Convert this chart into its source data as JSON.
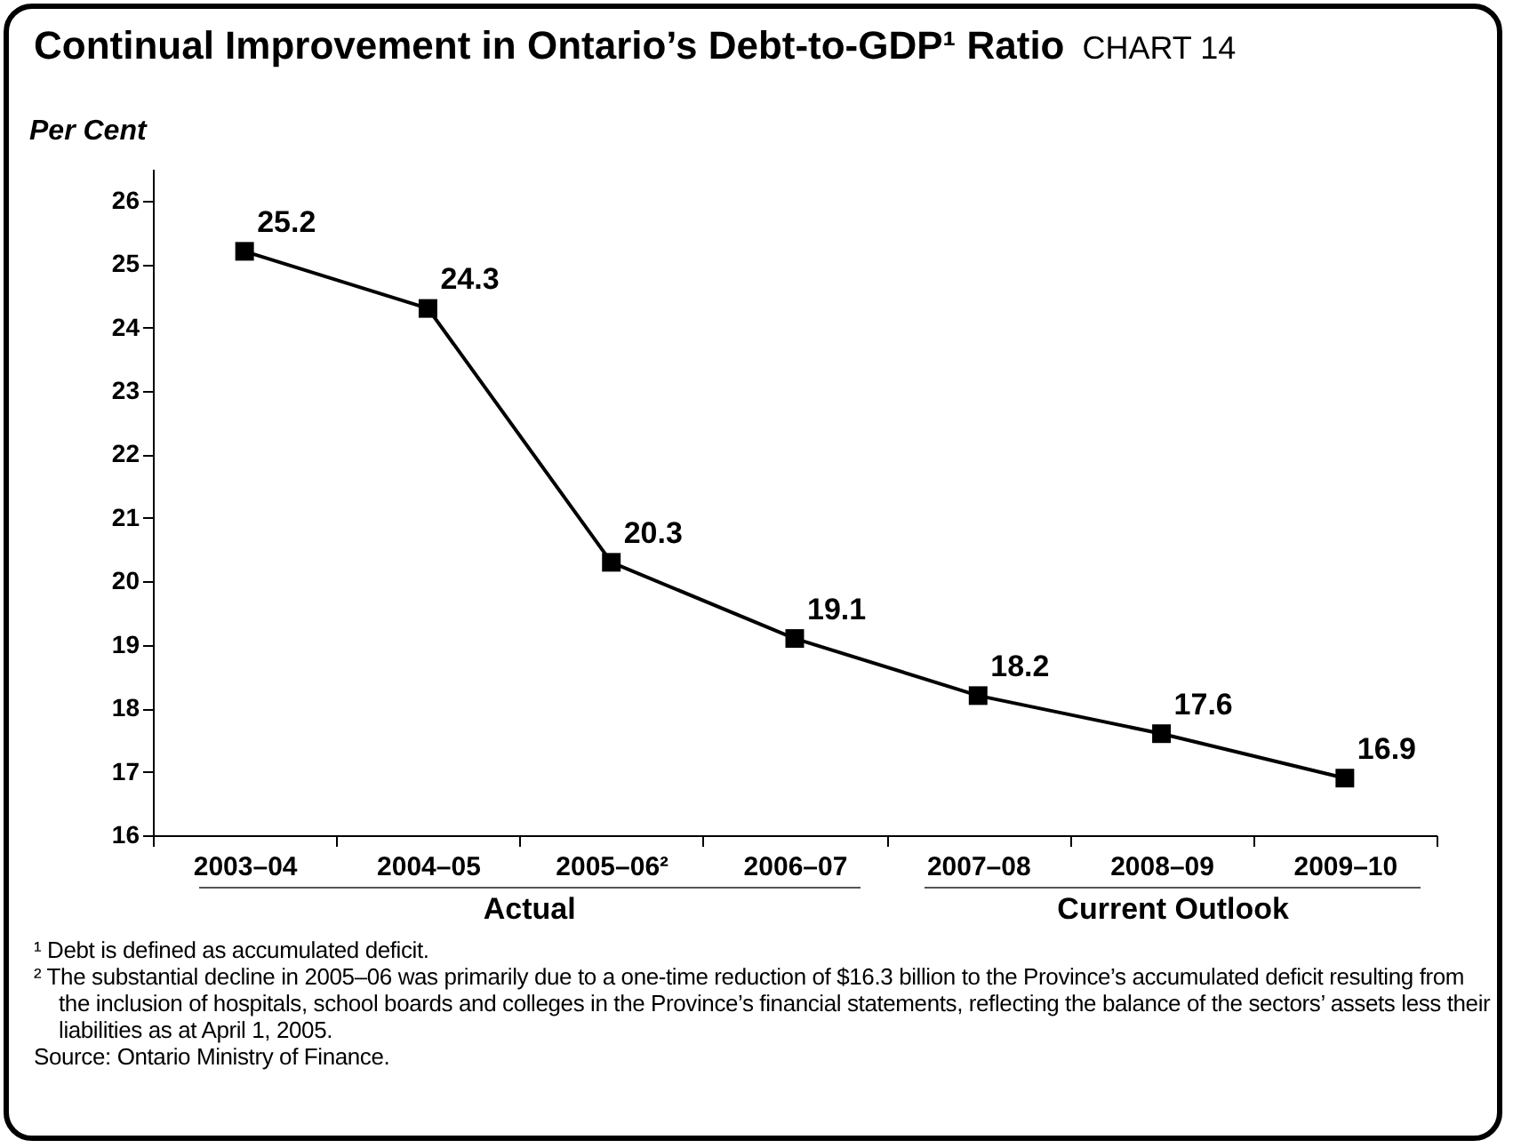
{
  "chart_data": {
    "type": "line",
    "title": "Continual Improvement in Ontario’s Debt-to-GDP¹ Ratio",
    "subtitle": "CHART 14",
    "ylabel": "Per Cent",
    "categories": [
      "2003–04",
      "2004–05",
      "2005–06²",
      "2006–07",
      "2007–08",
      "2008–09",
      "2009–10"
    ],
    "series": [
      {
        "color": "#000000",
        "values": [
          25.2,
          24.3,
          20.3,
          19.1,
          18.2,
          17.6,
          16.9
        ]
      }
    ],
    "ylim": [
      16,
      26.5
    ],
    "yticks": [
      16,
      17,
      18,
      19,
      20,
      21,
      22,
      23,
      24,
      25,
      26
    ],
    "marker": "square",
    "data_labels": true,
    "grid": false,
    "legend": false,
    "annotations": [
      "Actual",
      "Current Outlook",
      "¹ Debt is defined as accumulated deficit.",
      "² The substantial decline in 2005–06 was primarily due to a one-time reduction of $16.3 billion to the Province’s accumulated deficit resulting from the inclusion of hospitals, school boards and colleges in the Province’s financial statements, reflecting the balance of the sectors’ assets less their liabilities as at April 1, 2005.",
      "Source: Ontario Ministry of Finance."
    ]
  }
}
